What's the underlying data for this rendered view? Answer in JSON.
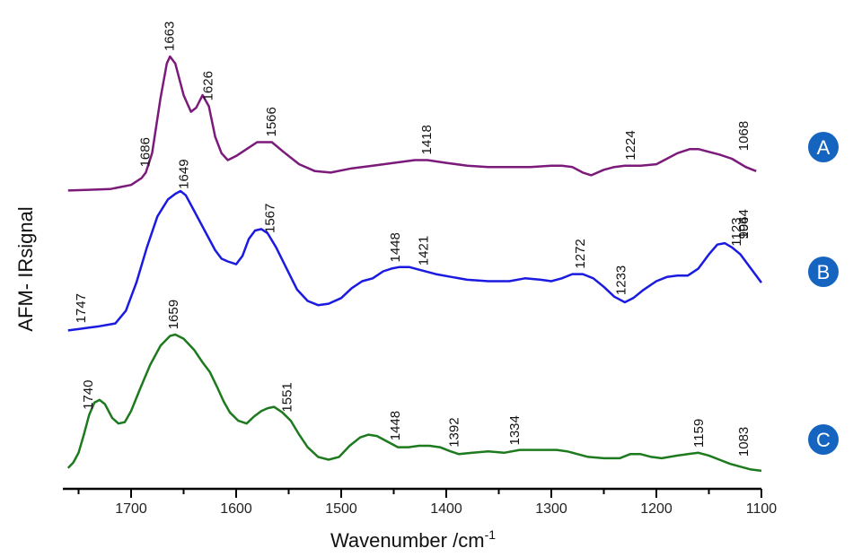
{
  "chart_data": {
    "type": "line",
    "title": "",
    "xlabel": "Wavenumber /cm",
    "xlabel_superscript": "-1",
    "ylabel": "AFM- IRsignal",
    "xlim": [
      1765,
      1100
    ],
    "x_reversed": true,
    "x_ticks": [
      1700,
      1600,
      1500,
      1400,
      1300,
      1200,
      1100
    ],
    "grid": false,
    "badge_color": "#1565C0",
    "series": [
      {
        "name": "A",
        "color": "#7B1A7A",
        "points": [
          [
            1760,
            0.03
          ],
          [
            1740,
            0.035
          ],
          [
            1720,
            0.04
          ],
          [
            1700,
            0.07
          ],
          [
            1690,
            0.12
          ],
          [
            1686,
            0.16
          ],
          [
            1680,
            0.3
          ],
          [
            1672,
            0.7
          ],
          [
            1666,
            0.95
          ],
          [
            1663,
            1.0
          ],
          [
            1658,
            0.95
          ],
          [
            1650,
            0.72
          ],
          [
            1643,
            0.6
          ],
          [
            1638,
            0.63
          ],
          [
            1632,
            0.72
          ],
          [
            1626,
            0.64
          ],
          [
            1620,
            0.42
          ],
          [
            1614,
            0.3
          ],
          [
            1608,
            0.25
          ],
          [
            1600,
            0.28
          ],
          [
            1590,
            0.33
          ],
          [
            1580,
            0.38
          ],
          [
            1566,
            0.38
          ],
          [
            1555,
            0.31
          ],
          [
            1540,
            0.22
          ],
          [
            1525,
            0.17
          ],
          [
            1510,
            0.16
          ],
          [
            1490,
            0.19
          ],
          [
            1470,
            0.21
          ],
          [
            1450,
            0.23
          ],
          [
            1430,
            0.25
          ],
          [
            1418,
            0.25
          ],
          [
            1400,
            0.23
          ],
          [
            1380,
            0.21
          ],
          [
            1360,
            0.2
          ],
          [
            1340,
            0.2
          ],
          [
            1320,
            0.2
          ],
          [
            1300,
            0.21
          ],
          [
            1290,
            0.21
          ],
          [
            1280,
            0.2
          ],
          [
            1270,
            0.16
          ],
          [
            1262,
            0.14
          ],
          [
            1250,
            0.18
          ],
          [
            1240,
            0.2
          ],
          [
            1230,
            0.21
          ],
          [
            1215,
            0.21
          ],
          [
            1200,
            0.22
          ],
          [
            1190,
            0.26
          ],
          [
            1180,
            0.3
          ],
          [
            1168,
            0.33
          ],
          [
            1160,
            0.33
          ],
          [
            1150,
            0.31
          ],
          [
            1140,
            0.29
          ],
          [
            1128,
            0.26
          ],
          [
            1115,
            0.2
          ],
          [
            1105,
            0.17
          ]
        ],
        "peaks": [
          {
            "label": "1686",
            "x": 1686
          },
          {
            "label": "1663",
            "x": 1663
          },
          {
            "label": "1626",
            "x": 1626
          },
          {
            "label": "1566",
            "x": 1566
          },
          {
            "label": "1418",
            "x": 1418
          },
          {
            "label": "1224",
            "x": 1224
          },
          {
            "label": "1068",
            "x": 1068
          }
        ]
      },
      {
        "name": "B",
        "color": "#1A1AE0",
        "points": [
          [
            1760,
            0.01
          ],
          [
            1750,
            0.02
          ],
          [
            1740,
            0.03
          ],
          [
            1730,
            0.04
          ],
          [
            1715,
            0.06
          ],
          [
            1705,
            0.15
          ],
          [
            1695,
            0.35
          ],
          [
            1685,
            0.6
          ],
          [
            1675,
            0.82
          ],
          [
            1665,
            0.94
          ],
          [
            1658,
            0.98
          ],
          [
            1653,
            1.0
          ],
          [
            1648,
            0.97
          ],
          [
            1640,
            0.86
          ],
          [
            1630,
            0.72
          ],
          [
            1620,
            0.58
          ],
          [
            1614,
            0.52
          ],
          [
            1608,
            0.5
          ],
          [
            1600,
            0.48
          ],
          [
            1594,
            0.54
          ],
          [
            1588,
            0.66
          ],
          [
            1582,
            0.72
          ],
          [
            1576,
            0.73
          ],
          [
            1570,
            0.7
          ],
          [
            1562,
            0.6
          ],
          [
            1552,
            0.45
          ],
          [
            1542,
            0.3
          ],
          [
            1532,
            0.22
          ],
          [
            1522,
            0.19
          ],
          [
            1512,
            0.2
          ],
          [
            1500,
            0.24
          ],
          [
            1490,
            0.31
          ],
          [
            1480,
            0.36
          ],
          [
            1470,
            0.38
          ],
          [
            1460,
            0.43
          ],
          [
            1452,
            0.45
          ],
          [
            1445,
            0.46
          ],
          [
            1435,
            0.46
          ],
          [
            1425,
            0.44
          ],
          [
            1410,
            0.41
          ],
          [
            1395,
            0.39
          ],
          [
            1380,
            0.37
          ],
          [
            1360,
            0.36
          ],
          [
            1340,
            0.36
          ],
          [
            1325,
            0.38
          ],
          [
            1310,
            0.37
          ],
          [
            1300,
            0.36
          ],
          [
            1290,
            0.38
          ],
          [
            1280,
            0.41
          ],
          [
            1270,
            0.41
          ],
          [
            1260,
            0.38
          ],
          [
            1250,
            0.32
          ],
          [
            1240,
            0.25
          ],
          [
            1230,
            0.21
          ],
          [
            1222,
            0.24
          ],
          [
            1212,
            0.3
          ],
          [
            1200,
            0.36
          ],
          [
            1190,
            0.39
          ],
          [
            1180,
            0.4
          ],
          [
            1170,
            0.4
          ],
          [
            1160,
            0.45
          ],
          [
            1150,
            0.55
          ],
          [
            1142,
            0.62
          ],
          [
            1135,
            0.63
          ],
          [
            1128,
            0.6
          ],
          [
            1120,
            0.55
          ],
          [
            1110,
            0.45
          ],
          [
            1100,
            0.35
          ]
        ],
        "peaks": [
          {
            "label": "1747",
            "x": 1747
          },
          {
            "label": "1649",
            "x": 1649
          },
          {
            "label": "1567",
            "x": 1567
          },
          {
            "label": "1448",
            "x": 1448
          },
          {
            "label": "1421",
            "x": 1421
          },
          {
            "label": "1272",
            "x": 1272
          },
          {
            "label": "1233",
            "x": 1233
          },
          {
            "label": "1123",
            "x": 1123
          },
          {
            "label": "1064",
            "x": 1064
          },
          {
            "label": "994",
            "x": 994
          }
        ]
      },
      {
        "name": "C",
        "color": "#1E7A1E",
        "points": [
          [
            1760,
            0.04
          ],
          [
            1755,
            0.08
          ],
          [
            1750,
            0.15
          ],
          [
            1745,
            0.28
          ],
          [
            1740,
            0.42
          ],
          [
            1735,
            0.51
          ],
          [
            1730,
            0.53
          ],
          [
            1725,
            0.5
          ],
          [
            1718,
            0.4
          ],
          [
            1712,
            0.36
          ],
          [
            1706,
            0.37
          ],
          [
            1700,
            0.45
          ],
          [
            1692,
            0.6
          ],
          [
            1682,
            0.78
          ],
          [
            1672,
            0.92
          ],
          [
            1663,
            0.99
          ],
          [
            1658,
            1.0
          ],
          [
            1650,
            0.97
          ],
          [
            1640,
            0.89
          ],
          [
            1632,
            0.8
          ],
          [
            1625,
            0.73
          ],
          [
            1618,
            0.62
          ],
          [
            1612,
            0.52
          ],
          [
            1606,
            0.44
          ],
          [
            1598,
            0.38
          ],
          [
            1590,
            0.36
          ],
          [
            1583,
            0.41
          ],
          [
            1576,
            0.45
          ],
          [
            1570,
            0.47
          ],
          [
            1564,
            0.48
          ],
          [
            1556,
            0.44
          ],
          [
            1548,
            0.38
          ],
          [
            1540,
            0.28
          ],
          [
            1532,
            0.19
          ],
          [
            1522,
            0.12
          ],
          [
            1512,
            0.1
          ],
          [
            1502,
            0.12
          ],
          [
            1492,
            0.2
          ],
          [
            1482,
            0.26
          ],
          [
            1474,
            0.28
          ],
          [
            1466,
            0.27
          ],
          [
            1456,
            0.23
          ],
          [
            1446,
            0.19
          ],
          [
            1436,
            0.19
          ],
          [
            1426,
            0.2
          ],
          [
            1416,
            0.2
          ],
          [
            1406,
            0.19
          ],
          [
            1396,
            0.16
          ],
          [
            1388,
            0.14
          ],
          [
            1375,
            0.15
          ],
          [
            1360,
            0.16
          ],
          [
            1345,
            0.15
          ],
          [
            1330,
            0.17
          ],
          [
            1310,
            0.17
          ],
          [
            1295,
            0.17
          ],
          [
            1285,
            0.16
          ],
          [
            1275,
            0.14
          ],
          [
            1265,
            0.12
          ],
          [
            1250,
            0.11
          ],
          [
            1235,
            0.11
          ],
          [
            1225,
            0.14
          ],
          [
            1215,
            0.14
          ],
          [
            1205,
            0.12
          ],
          [
            1195,
            0.11
          ],
          [
            1180,
            0.13
          ],
          [
            1170,
            0.14
          ],
          [
            1160,
            0.15
          ],
          [
            1150,
            0.13
          ],
          [
            1140,
            0.1
          ],
          [
            1130,
            0.07
          ],
          [
            1120,
            0.05
          ],
          [
            1110,
            0.03
          ],
          [
            1100,
            0.02
          ]
        ],
        "peaks": [
          {
            "label": "1740",
            "x": 1740
          },
          {
            "label": "1659",
            "x": 1659
          },
          {
            "label": "1551",
            "x": 1551
          },
          {
            "label": "1448",
            "x": 1448
          },
          {
            "label": "1392",
            "x": 1392
          },
          {
            "label": "1334",
            "x": 1334
          },
          {
            "label": "1159",
            "x": 1159
          },
          {
            "label": "1083",
            "x": 1083
          }
        ]
      }
    ]
  }
}
